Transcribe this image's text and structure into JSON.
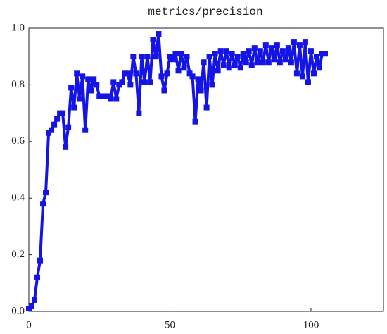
{
  "chart_data": {
    "type": "line",
    "title": "metrics/precision",
    "x": [
      0,
      1,
      2,
      3,
      4,
      5,
      6,
      7,
      8,
      9,
      10,
      11,
      12,
      13,
      14,
      15,
      16,
      17,
      18,
      19,
      20,
      21,
      22,
      23,
      24,
      25,
      26,
      27,
      28,
      29,
      30,
      31,
      32,
      33,
      34,
      35,
      36,
      37,
      38,
      39,
      40,
      41,
      42,
      43,
      44,
      45,
      46,
      47,
      48,
      49,
      50,
      51,
      52,
      53,
      54,
      55,
      56,
      57,
      58,
      59,
      60,
      61,
      62,
      63,
      64,
      65,
      66,
      67,
      68,
      69,
      70,
      71,
      72,
      73,
      74,
      75,
      76,
      77,
      78,
      79,
      80,
      81,
      82,
      83,
      84,
      85,
      86,
      87,
      88,
      89,
      90,
      91,
      92,
      93,
      94,
      95,
      96,
      97,
      98,
      99,
      100,
      101,
      102,
      103,
      104,
      105
    ],
    "series": [
      {
        "color": "#1414e6",
        "values": [
          0.01,
          0.02,
          0.04,
          0.12,
          0.18,
          0.38,
          0.42,
          0.63,
          0.64,
          0.66,
          0.68,
          0.7,
          0.7,
          0.58,
          0.65,
          0.79,
          0.72,
          0.84,
          0.75,
          0.83,
          0.64,
          0.82,
          0.78,
          0.82,
          0.8,
          0.76,
          0.76,
          0.76,
          0.76,
          0.75,
          0.81,
          0.75,
          0.8,
          0.81,
          0.84,
          0.84,
          0.8,
          0.9,
          0.84,
          0.7,
          0.9,
          0.81,
          0.9,
          0.81,
          0.96,
          0.9,
          0.98,
          0.83,
          0.78,
          0.84,
          0.9,
          0.89,
          0.91,
          0.85,
          0.91,
          0.86,
          0.9,
          0.84,
          0.83,
          0.67,
          0.82,
          0.78,
          0.88,
          0.72,
          0.9,
          0.8,
          0.91,
          0.85,
          0.92,
          0.87,
          0.92,
          0.86,
          0.91,
          0.87,
          0.9,
          0.86,
          0.91,
          0.88,
          0.92,
          0.87,
          0.93,
          0.88,
          0.92,
          0.88,
          0.94,
          0.88,
          0.93,
          0.89,
          0.94,
          0.88,
          0.92,
          0.89,
          0.93,
          0.88,
          0.95,
          0.84,
          0.94,
          0.83,
          0.95,
          0.81,
          0.92,
          0.84,
          0.9,
          0.86,
          0.91,
          0.91
        ]
      }
    ],
    "xlim": [
      0,
      125.7
    ],
    "ylim": [
      0,
      1.0
    ],
    "xticks": [
      0,
      50,
      100
    ],
    "yticks": [
      {
        "value": 0,
        "label": "0.0"
      },
      0.2,
      0.4,
      0.6,
      0.8,
      {
        "value": 1,
        "label": "1.0"
      }
    ]
  }
}
